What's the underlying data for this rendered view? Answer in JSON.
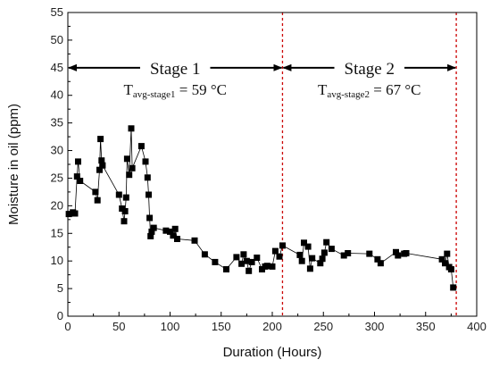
{
  "chart_data": {
    "type": "scatter",
    "xlabel": "Duration (Hours)",
    "ylabel": "Moisture in oil (ppm)",
    "xlim": [
      0,
      400
    ],
    "ylim": [
      0,
      55
    ],
    "xticks": [
      0,
      50,
      100,
      150,
      200,
      250,
      300,
      350,
      400
    ],
    "yticks": [
      0,
      5,
      10,
      15,
      20,
      25,
      30,
      35,
      40,
      45,
      50,
      55
    ],
    "grid": false,
    "series": [
      {
        "points": [
          [
            1,
            18.5
          ],
          [
            5,
            18.8
          ],
          [
            7,
            18.6
          ],
          [
            9,
            25.3
          ],
          [
            10,
            28.0
          ],
          [
            12,
            24.5
          ],
          [
            27,
            22.5
          ],
          [
            29,
            21.0
          ],
          [
            31,
            26.5
          ],
          [
            32,
            32.1
          ],
          [
            33,
            28.2
          ],
          [
            34,
            27.3
          ],
          [
            50,
            22.0
          ],
          [
            53,
            19.5
          ],
          [
            55,
            17.2
          ],
          [
            56,
            19.0
          ],
          [
            57,
            21.5
          ],
          [
            58,
            28.5
          ],
          [
            60,
            25.6
          ],
          [
            62,
            34.0
          ],
          [
            63,
            26.8
          ],
          [
            72,
            30.8
          ],
          [
            76,
            28.0
          ],
          [
            78,
            25.1
          ],
          [
            79,
            22.0
          ],
          [
            80,
            17.8
          ],
          [
            81,
            14.5
          ],
          [
            82,
            15.3
          ],
          [
            84,
            16.0
          ],
          [
            96,
            15.5
          ],
          [
            100,
            15.3
          ],
          [
            103,
            14.6
          ],
          [
            105,
            15.8
          ],
          [
            107,
            14.0
          ],
          [
            124,
            13.7
          ],
          [
            134,
            11.2
          ],
          [
            144,
            9.8
          ],
          [
            155,
            8.5
          ],
          [
            165,
            10.7
          ],
          [
            170,
            9.5
          ],
          [
            172,
            11.2
          ],
          [
            175,
            10.0
          ],
          [
            177,
            8.2
          ],
          [
            180,
            9.8
          ],
          [
            185,
            10.6
          ],
          [
            190,
            8.5
          ],
          [
            193,
            9.0
          ],
          [
            195,
            9.1
          ],
          [
            200,
            9.0
          ],
          [
            203,
            11.8
          ],
          [
            207,
            10.8
          ],
          [
            210,
            12.8
          ],
          [
            227,
            11.1
          ],
          [
            229,
            10.0
          ],
          [
            231,
            13.3
          ],
          [
            235,
            12.6
          ],
          [
            237,
            8.6
          ],
          [
            239,
            10.5
          ],
          [
            247,
            9.6
          ],
          [
            249,
            10.4
          ],
          [
            251,
            11.5
          ],
          [
            253,
            13.4
          ],
          [
            258,
            12.2
          ],
          [
            270,
            11.0
          ],
          [
            274,
            11.4
          ],
          [
            295,
            11.3
          ],
          [
            303,
            10.3
          ],
          [
            306,
            9.6
          ],
          [
            321,
            11.6
          ],
          [
            323,
            11.0
          ],
          [
            329,
            11.3
          ],
          [
            331,
            11.4
          ],
          [
            366,
            10.3
          ],
          [
            369,
            9.6
          ],
          [
            371,
            11.3
          ],
          [
            373,
            8.9
          ],
          [
            375,
            8.5
          ],
          [
            377,
            5.2
          ]
        ]
      }
    ],
    "stage_boundaries": [
      210,
      380
    ],
    "stage_arrow_y": 45,
    "stages": [
      {
        "label": "Stage 1",
        "temp_prefix": "T",
        "temp_subscript": "avg-stage1",
        "temp_value": " = 59 °C",
        "x_start": 0,
        "x_end": 210
      },
      {
        "label": "Stage 2",
        "temp_prefix": "T",
        "temp_subscript": "avg-stage2",
        "temp_value": " = 67 °C",
        "x_start": 210,
        "x_end": 380
      }
    ],
    "colors": {
      "marker": "#000000",
      "line": "#000000",
      "boundary": "#cc0000"
    }
  }
}
